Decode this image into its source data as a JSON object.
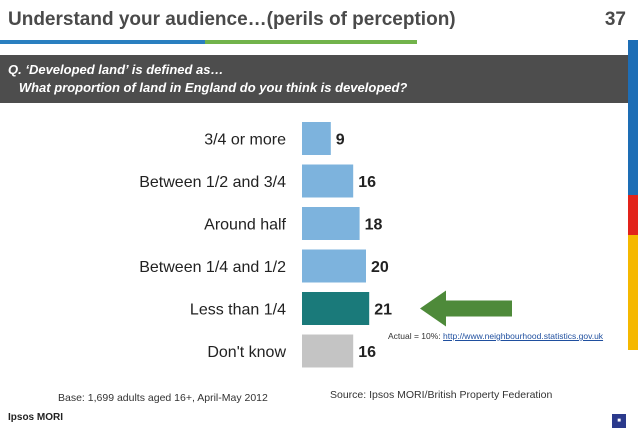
{
  "header": {
    "title": "Understand your audience…(perils of perception)",
    "slide_number": "37"
  },
  "question": {
    "line1": "Q. ‘Developed land’ is defined as…",
    "line2": "   What proportion of land in England do you think is developed?"
  },
  "colors": {
    "bar_default": "#7db3dd",
    "bar_highlight": "#1a7a7a",
    "bar_dont_know": "#c4c4c4",
    "arrow": "#4e8a3a",
    "header_blue": "#2a7fc0",
    "header_green": "#72b34b",
    "strip_blue": "#1d6db5",
    "strip_red": "#e2231a",
    "strip_yellow": "#f5b800"
  },
  "chart_data": {
    "type": "bar",
    "orientation": "horizontal",
    "categories": [
      "3/4 or more",
      "Between 1/2 and 3/4",
      "Around half",
      "Between 1/4 and 1/2",
      "Less than 1/4",
      "Don't know"
    ],
    "values": [
      9,
      16,
      18,
      20,
      21,
      16
    ],
    "data_labels": [
      "9",
      "16",
      "18",
      "20",
      "21",
      "16"
    ],
    "highlight_category": "Less than 1/4",
    "xlim": [
      0,
      100
    ]
  },
  "annotation": {
    "actual_prefix": "Actual = 10%: ",
    "actual_url": "http://www.neighbourhood.statistics.gov.uk",
    "arrow_icon": "arrow-left-icon"
  },
  "footer": {
    "base": "Base:  1,699 adults aged 16+, April-May 2012",
    "source": "Source: Ipsos MORI/British Property Federation",
    "logo": "Ipsos MORI",
    "corner_icon": "ipsos-logo-icon"
  }
}
